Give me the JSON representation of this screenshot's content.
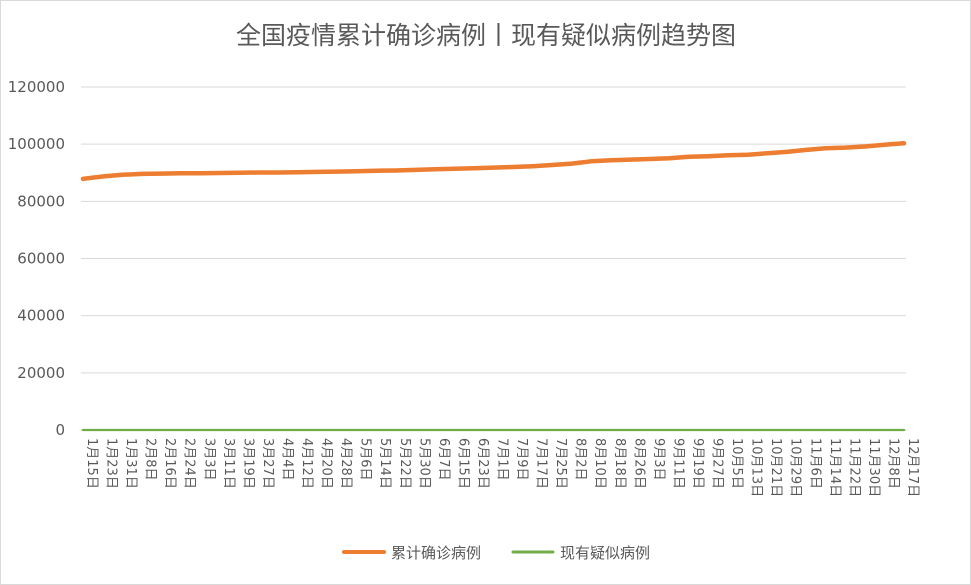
{
  "chart_data": {
    "type": "line",
    "title": "全国疫情累计确诊病例丨现有疑似病例趋势图",
    "xlabel": "",
    "ylabel": "",
    "ylim": [
      0,
      120000
    ],
    "yticks": [
      0,
      20000,
      40000,
      60000,
      80000,
      100000,
      120000
    ],
    "grid": "horizontal",
    "legend_position": "bottom",
    "categories": [
      "1月15日",
      "1月23日",
      "1月31日",
      "2月8日",
      "2月16日",
      "2月24日",
      "3月3日",
      "3月11日",
      "3月19日",
      "3月27日",
      "4月4日",
      "4月12日",
      "4月20日",
      "4月28日",
      "5月6日",
      "5月14日",
      "5月22日",
      "5月30日",
      "6月7日",
      "6月15日",
      "6月23日",
      "7月1日",
      "7月9日",
      "7月17日",
      "7月25日",
      "8月2日",
      "8月10日",
      "8月18日",
      "8月26日",
      "9月3日",
      "9月11日",
      "9月19日",
      "9月27日",
      "10月5日",
      "10月13日",
      "10月21日",
      "10月29日",
      "11月6日",
      "11月14日",
      "11月22日",
      "11月30日",
      "12月8日",
      "12月17日"
    ],
    "series": [
      {
        "name": "累计确诊病例",
        "color": "#ED7D31",
        "values": [
          87900,
          88700,
          89300,
          89600,
          89700,
          89800,
          89800,
          89900,
          90000,
          90100,
          90100,
          90200,
          90300,
          90400,
          90500,
          90700,
          90800,
          91000,
          91200,
          91400,
          91600,
          91800,
          92000,
          92300,
          92700,
          93200,
          94000,
          94400,
          94600,
          94800,
          95100,
          95600,
          95800,
          96100,
          96300,
          96800,
          97300,
          98000,
          98600,
          98800,
          99200,
          99800,
          100300
        ]
      },
      {
        "name": "现有疑似病例",
        "color": "#70AD47",
        "values": [
          10,
          10,
          10,
          10,
          10,
          10,
          10,
          10,
          10,
          10,
          10,
          10,
          10,
          10,
          10,
          10,
          10,
          10,
          10,
          10,
          10,
          10,
          10,
          10,
          10,
          10,
          10,
          10,
          10,
          10,
          10,
          10,
          10,
          10,
          10,
          10,
          10,
          10,
          10,
          10,
          10,
          10,
          10
        ]
      }
    ]
  }
}
